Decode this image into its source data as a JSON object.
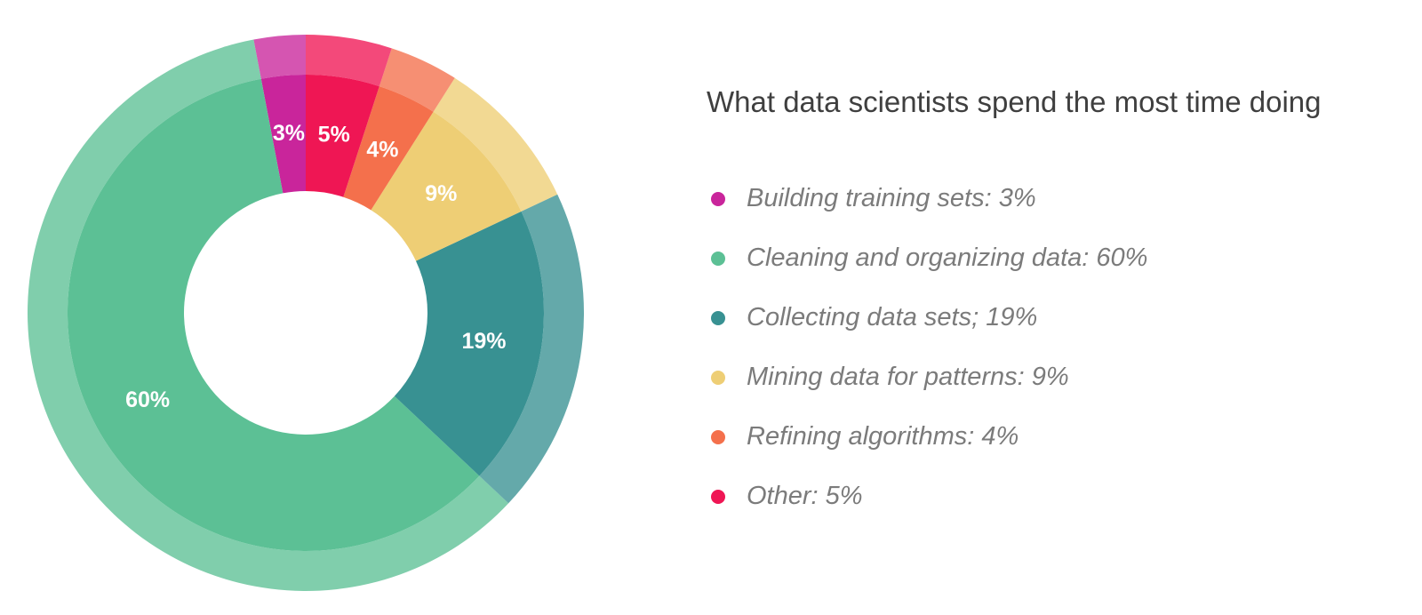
{
  "chart_data": {
    "type": "pie",
    "title": "What data scientists spend the most time doing",
    "legend_position": "right",
    "categories": [
      "Building training sets",
      "Cleaning and organizing data",
      "Collecting data sets",
      "Mining data for patterns",
      "Refining algorithms",
      "Other"
    ],
    "values": [
      3,
      60,
      19,
      9,
      4,
      5
    ],
    "unit": "%",
    "slice_labels": [
      "3%",
      "60%",
      "19%",
      "9%",
      "4%",
      "5%"
    ],
    "legend_labels": [
      "Building training sets: 3%",
      "Cleaning and organizing data: 60%",
      "Collecting data sets; 19%",
      "Mining data for patterns: 9%",
      "Refining algorithms: 4%",
      "Other: 5%"
    ],
    "colors": [
      "#c9259b",
      "#5cc095",
      "#389192",
      "#eece75",
      "#f4704c",
      "#ef1654"
    ]
  }
}
